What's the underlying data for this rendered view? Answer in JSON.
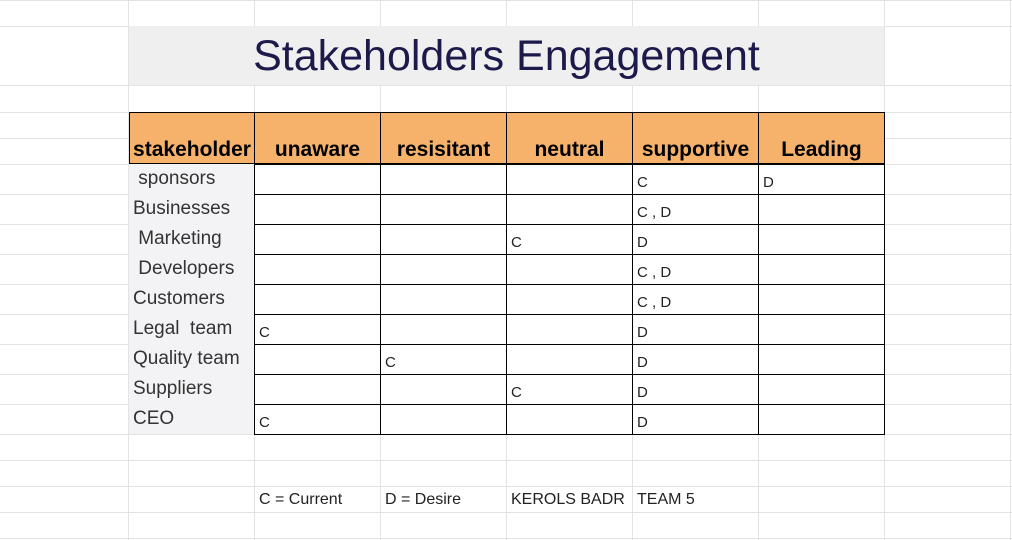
{
  "title": "Stakeholders Engagement",
  "table": {
    "headers": [
      "stakeholder",
      "unaware",
      "resisitant",
      "neutral",
      "supportive",
      "Leading"
    ],
    "rows": [
      {
        "name": " sponsors",
        "cells": [
          "",
          "",
          "",
          "C",
          "D"
        ]
      },
      {
        "name": "Businesses",
        "cells": [
          "",
          "",
          "",
          "C , D",
          ""
        ]
      },
      {
        "name": " Marketing",
        "cells": [
          "",
          "",
          "C",
          "D",
          ""
        ]
      },
      {
        "name": " Developers",
        "cells": [
          "",
          "",
          "",
          "C , D",
          ""
        ]
      },
      {
        "name": "Customers",
        "cells": [
          "",
          "",
          "",
          "C , D",
          ""
        ]
      },
      {
        "name": "Legal  team",
        "cells": [
          "C",
          "",
          "",
          "D",
          ""
        ]
      },
      {
        "name": "Quality team",
        "cells": [
          "",
          "C",
          "",
          "D",
          ""
        ]
      },
      {
        "name": "Suppliers",
        "cells": [
          "",
          "",
          "C",
          "D",
          ""
        ]
      },
      {
        "name": "CEO",
        "cells": [
          "C",
          "",
          "",
          "D",
          ""
        ]
      }
    ]
  },
  "legend": {
    "current": "C = Current",
    "desire": "D = Desire",
    "author": "KEROLS BADR",
    "team": "TEAM 5"
  },
  "colors": {
    "header_fill": "#f6b26b",
    "title_band": "#efefef",
    "title_text": "#1c1a4a",
    "gridline": "#e2e3e3"
  }
}
